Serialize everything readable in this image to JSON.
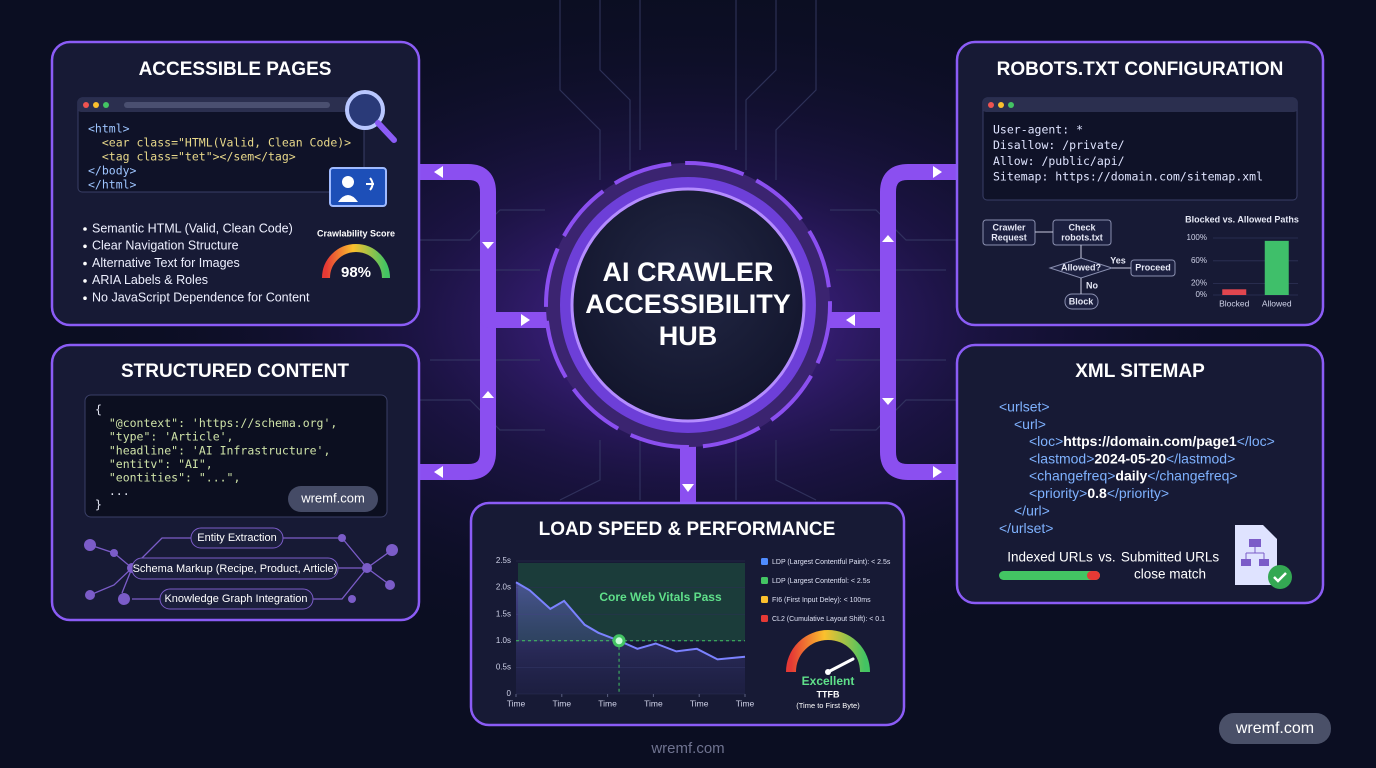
{
  "hub": {
    "lines": [
      "AI CRAWLER",
      "ACCESSIBILITY",
      "HUB"
    ]
  },
  "accessible_pages": {
    "title": "ACCESSIBLE PAGES",
    "code": [
      "<html>",
      "  <ear class=\"HTML(Valid, Clean Code)>",
      "  <tag class=\"tet\"></sem</tag>",
      "</body>",
      "</html>"
    ],
    "bullets": [
      "Semantic HTML (Valid, Clean Code)",
      "Clear Navigation Structure",
      "Alternative Text for Images",
      "ARIA Labels & Roles",
      "No JavaScript Dependence for Content"
    ],
    "score_title": "Crawlability Score",
    "score": "98%"
  },
  "structured_content": {
    "title": "STRUCTURED CONTENT",
    "code": [
      "{",
      "  \"@context\": 'https://schema.org',",
      "  \"type\": 'Article',",
      "  \"headline\": 'AI Infrastructure',",
      "  \"entitv\": \"AI\",",
      "  \"eontities\": \"...\",",
      "  ...",
      "}"
    ],
    "badge": "wremf.com",
    "graph": [
      "Entity Extraction",
      "Schema Markup (Recipe, Product, Article)",
      "Knowledge Graph Integration"
    ]
  },
  "robots": {
    "title": "ROBOTS.TXT CONFIGURATION",
    "code": [
      "User-agent: *",
      "Disallow: /private/",
      "Allow: /public/api/",
      "Sitemap: https://domain.com/sitemap.xml"
    ],
    "flow": {
      "request": [
        "Crawler",
        "Request"
      ],
      "check": [
        "Check",
        "robots.txt"
      ],
      "decision": "Allowed?",
      "yes": "Yes",
      "no": "No",
      "proceed": "Proceed",
      "block": "Block"
    },
    "chart": {
      "type": "bar",
      "title": "Blocked vs. Allowed Paths",
      "categories": [
        "Blocked",
        "Allowed"
      ],
      "values": [
        10,
        95
      ],
      "colors": [
        "#e0464f",
        "#3fbf6a"
      ],
      "ylim": [
        0,
        100
      ],
      "yticks": [
        {
          "value": 0,
          "label": "0%"
        },
        {
          "value": 20,
          "label": "20%"
        },
        {
          "value": 60,
          "label": "60%"
        },
        {
          "value": 100,
          "label": "100%"
        }
      ]
    }
  },
  "sitemap": {
    "title": "XML SITEMAP",
    "open": [
      "<urlset>",
      "<url>"
    ],
    "entries": [
      {
        "open": "<loc>",
        "value": "https://domain.com/page1",
        "close": "</loc>"
      },
      {
        "open": "<lastmod>",
        "value": "2024-05-20",
        "close": "</lastmod>"
      },
      {
        "open": "<changefreq>",
        "value": "daily",
        "close": "</changefreq>"
      },
      {
        "open": "<priority>",
        "value": "0.8",
        "close": "</priority>"
      }
    ],
    "close": [
      "</url>",
      "</urlset>"
    ],
    "compare": [
      "Indexed URLs",
      "vs.",
      "Submitted URLs"
    ],
    "note": "close match"
  },
  "performance": {
    "title": "LOAD SPEED & PERFORMANCE",
    "chart": {
      "type": "line",
      "x": [
        0,
        0.6,
        1.5,
        2.1,
        3.0,
        3.6,
        4.5,
        5.3,
        6.1,
        7.0,
        7.9,
        8.8,
        10
      ],
      "values": [
        2.1,
        1.95,
        1.6,
        1.75,
        1.3,
        1.15,
        1.0,
        0.85,
        0.95,
        0.8,
        0.85,
        0.65,
        0.7
      ],
      "color": "#7b82ff",
      "xlim": [
        0,
        10
      ],
      "xticks": [
        {
          "value": 0,
          "label": "Time"
        },
        {
          "value": 2,
          "label": "Time"
        },
        {
          "value": 4,
          "label": "Time"
        },
        {
          "value": 6,
          "label": "Time"
        },
        {
          "value": 8,
          "label": "Time"
        },
        {
          "value": 10,
          "label": "Time"
        }
      ],
      "ylim": [
        0,
        2.5
      ],
      "yticks": [
        0,
        {
          "value": 0.5,
          "label": "0.5s"
        },
        {
          "value": 1.0,
          "label": "1.0s"
        },
        {
          "value": 1.5,
          "label": "1.5s"
        },
        {
          "value": 2.0,
          "label": "2.0s"
        },
        {
          "value": 2.5,
          "label": "2.5s"
        }
      ],
      "threshold": {
        "value": 1.0,
        "label": "Core Web Vitals Pass"
      },
      "highlight_x": 4.5
    },
    "metrics": [
      {
        "name": "LDP (Largest Contentful Paint): < 2.5s",
        "color": "#4f8cff"
      },
      {
        "name": "LDP (Largest Contentfol: < 2.5s",
        "color": "#43c463"
      },
      {
        "name": "FI6 (First Input Deley): < 100ms",
        "color": "#fbc02d"
      },
      {
        "name": "CL2 (Cumulative Layout Shift): < 0.1",
        "color": "#e53935"
      }
    ],
    "gauge": {
      "label": "Excellent",
      "metric": "TTFB",
      "description": "(Time to First Byte)"
    }
  },
  "footer": {
    "center": "wremf.com",
    "badge": "wremf.com"
  }
}
